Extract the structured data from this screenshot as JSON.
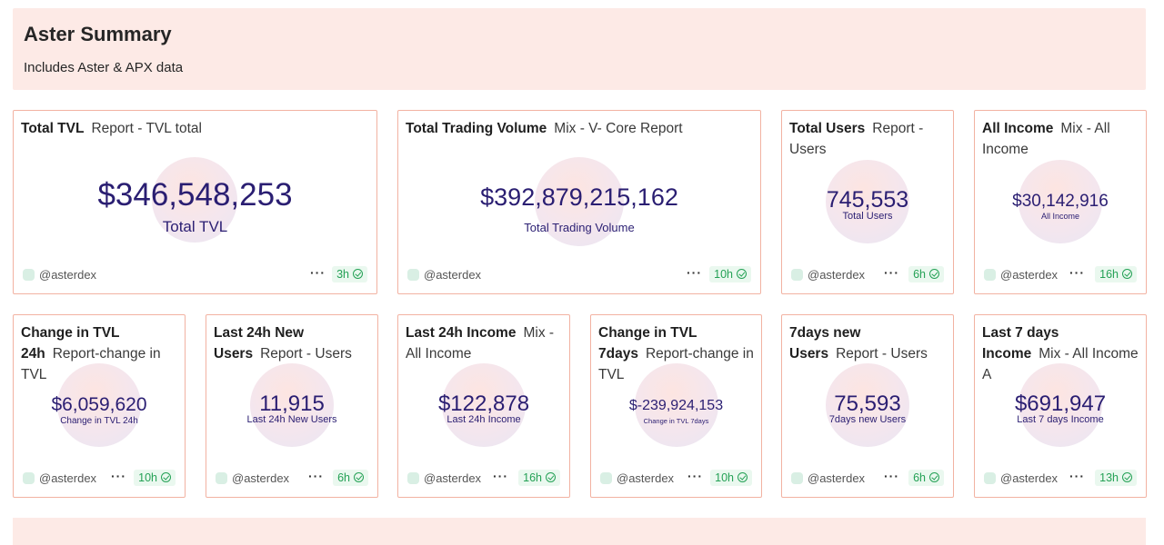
{
  "header": {
    "title": "Aster Summary",
    "subtitle": "Includes Aster & APX data"
  },
  "colors": {
    "header_bg": "#fdeae6",
    "card_border": "#f2b2a2",
    "value": "#2a1e72",
    "badge_green": "#24a155"
  },
  "cards": [
    {
      "title": "Total TVL",
      "query": "Report - TVL total",
      "value": "$346,548,253",
      "label": "Total TVL",
      "handle": "@asterdex",
      "age": "3h",
      "icon": "check-circle-icon"
    },
    {
      "title": "Total Trading Volume",
      "query": "Mix - V- Core Report",
      "value": "$392,879,215,162",
      "label": "Total Trading Volume",
      "handle": "@asterdex",
      "age": "10h",
      "icon": "check-circle-icon"
    },
    {
      "title": "Total Users",
      "query": "Report - Users",
      "value": "745,553",
      "label": "Total Users",
      "handle": "@asterdex",
      "age": "6h",
      "icon": "check-circle-icon"
    },
    {
      "title": "All Income",
      "query": "Mix - All Income",
      "value": "$30,142,916",
      "label": "All Income",
      "handle": "@asterdex",
      "age": "16h",
      "icon": "check-circle-icon"
    },
    {
      "title": "Change in TVL 24h",
      "query": "Report-change in TVL",
      "value": "$6,059,620",
      "label": "Change in TVL 24h",
      "handle": "@asterdex",
      "age": "10h",
      "icon": "check-circle-icon"
    },
    {
      "title": "Last 24h New Users",
      "query": "Report - Users",
      "value": "11,915",
      "label": "Last 24h New Users",
      "handle": "@asterdex",
      "age": "6h",
      "icon": "check-circle-icon"
    },
    {
      "title": "Last 24h Income",
      "query": "Mix - All Income",
      "value": "$122,878",
      "label": "Last 24h Income",
      "handle": "@asterdex",
      "age": "16h",
      "icon": "check-circle-icon"
    },
    {
      "title": "Change in TVL 7days",
      "query": "Report-change in TVL",
      "value": "$-239,924,153",
      "label": "Change in TVL 7days",
      "handle": "@asterdex",
      "age": "10h",
      "icon": "check-circle-icon"
    },
    {
      "title": "7days new Users",
      "query": "Report - Users",
      "value": "75,593",
      "label": "7days new Users",
      "handle": "@asterdex",
      "age": "6h",
      "icon": "check-circle-icon"
    },
    {
      "title": "Last 7 days Income",
      "query": "Mix - All Income A",
      "value": "$691,947",
      "label": "Last 7 days Income",
      "handle": "@asterdex",
      "age": "13h",
      "icon": "check-circle-icon"
    }
  ]
}
